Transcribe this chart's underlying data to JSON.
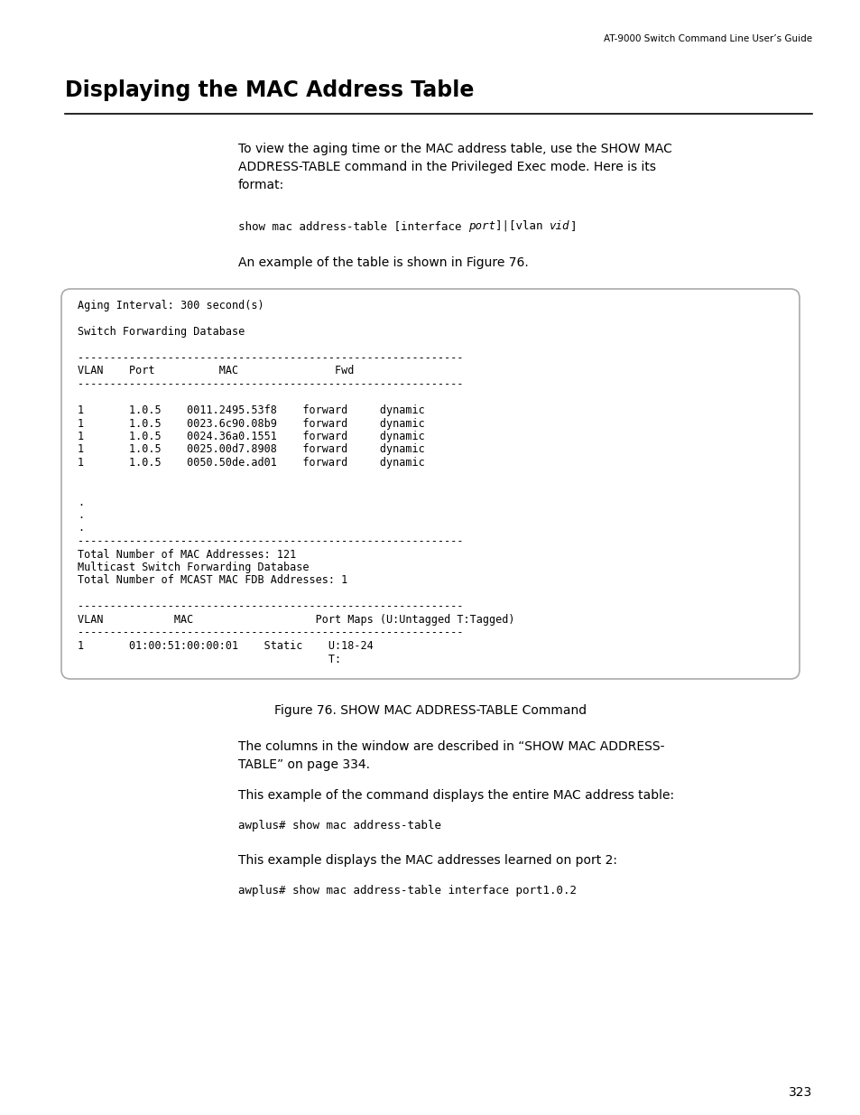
{
  "page_header": "AT-9000 Switch Command Line User’s Guide",
  "title": "Displaying the MAC Address Table",
  "body_text_1": "To view the aging time or the MAC address table, use the SHOW MAC\nADDRESS-TABLE command in the Privileged Exec mode. Here is its\nformat:",
  "cmd1_normal1": "show mac address-table [interface ",
  "cmd1_italic1": "port",
  "cmd1_normal2": "]|[vlan ",
  "cmd1_italic2": "vid",
  "cmd1_normal3": "]",
  "body_text_2": "An example of the table is shown in Figure 76.",
  "terminal_lines": [
    "Aging Interval: 300 second(s)",
    "",
    "Switch Forwarding Database",
    "",
    "------------------------------------------------------------",
    "VLAN    Port          MAC               Fwd",
    "------------------------------------------------------------",
    "",
    "1       1.0.5    0011.2495.53f8    forward     dynamic",
    "1       1.0.5    0023.6c90.08b9    forward     dynamic",
    "1       1.0.5    0024.36a0.1551    forward     dynamic",
    "1       1.0.5    0025.00d7.8908    forward     dynamic",
    "1       1.0.5    0050.50de.ad01    forward     dynamic",
    "",
    "",
    ".",
    ".",
    ".",
    "------------------------------------------------------------",
    "Total Number of MAC Addresses: 121",
    "Multicast Switch Forwarding Database",
    "Total Number of MCAST MAC FDB Addresses: 1",
    "",
    "------------------------------------------------------------",
    "VLAN           MAC                   Port Maps (U:Untagged T:Tagged)",
    "------------------------------------------------------------",
    "1       01:00:51:00:00:01    Static    U:18-24",
    "                                       T:"
  ],
  "figure_caption": "Figure 76. SHOW MAC ADDRESS-TABLE Command",
  "body_text_3": "The columns in the window are described in “SHOW MAC ADDRESS-\nTABLE” on page 334.",
  "body_text_4": "This example of the command displays the entire MAC address table:",
  "command_line_2": "awplus# show mac address-table",
  "body_text_5": "This example displays the MAC addresses learned on port 2:",
  "command_line_3": "awplus# show mac address-table interface port1.0.2",
  "page_number": "323",
  "bg_color": "#ffffff",
  "text_color": "#000000",
  "terminal_border": "#aaaaaa"
}
